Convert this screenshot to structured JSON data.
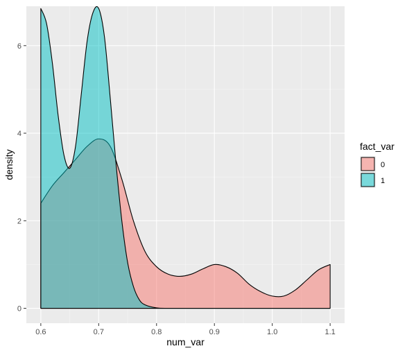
{
  "chart_data": {
    "type": "area",
    "xlabel": "num_var",
    "ylabel": "density",
    "xlim": [
      0.575,
      1.125
    ],
    "ylim": [
      -0.34,
      6.9
    ],
    "x_ticks": [
      0.6,
      0.7,
      0.8,
      0.9,
      1.0,
      1.1
    ],
    "x_tick_labels": [
      "0.6",
      "0.7",
      "0.8",
      "0.9",
      "1.0",
      "1.1"
    ],
    "y_ticks": [
      0,
      2,
      4,
      6
    ],
    "y_tick_labels": [
      "0",
      "2",
      "4",
      "6"
    ],
    "grid": true,
    "legend": {
      "title": "fact_var",
      "position": "right",
      "entries": [
        "0",
        "1"
      ]
    },
    "series": [
      {
        "name": "0",
        "color": "#F8766D",
        "x": [
          0.6,
          0.62,
          0.64,
          0.66,
          0.68,
          0.7,
          0.72,
          0.74,
          0.76,
          0.78,
          0.8,
          0.82,
          0.84,
          0.86,
          0.88,
          0.9,
          0.92,
          0.94,
          0.96,
          0.98,
          1.0,
          1.02,
          1.04,
          1.06,
          1.08,
          1.1
        ],
        "values": [
          2.4,
          2.8,
          3.1,
          3.4,
          3.7,
          3.87,
          3.7,
          2.95,
          2.0,
          1.3,
          0.95,
          0.78,
          0.73,
          0.78,
          0.9,
          1.0,
          0.95,
          0.8,
          0.55,
          0.38,
          0.28,
          0.28,
          0.42,
          0.65,
          0.88,
          1.0
        ]
      },
      {
        "name": "1",
        "color": "#00BFC4",
        "x": [
          0.6,
          0.61,
          0.62,
          0.63,
          0.64,
          0.65,
          0.66,
          0.67,
          0.68,
          0.69,
          0.7,
          0.71,
          0.72,
          0.73,
          0.74,
          0.75,
          0.76,
          0.77,
          0.78,
          0.8,
          0.82,
          0.84,
          0.86,
          0.88,
          0.9,
          0.95,
          1.0,
          1.05,
          1.1
        ],
        "values": [
          6.85,
          6.5,
          5.6,
          4.4,
          3.5,
          3.2,
          3.7,
          4.9,
          6.1,
          6.75,
          6.85,
          6.2,
          4.8,
          3.3,
          2.0,
          1.05,
          0.5,
          0.2,
          0.08,
          0.01,
          0.0,
          0.0,
          0.0,
          0.0,
          0.0,
          0.0,
          0.0,
          0.0,
          0.0
        ]
      }
    ]
  }
}
